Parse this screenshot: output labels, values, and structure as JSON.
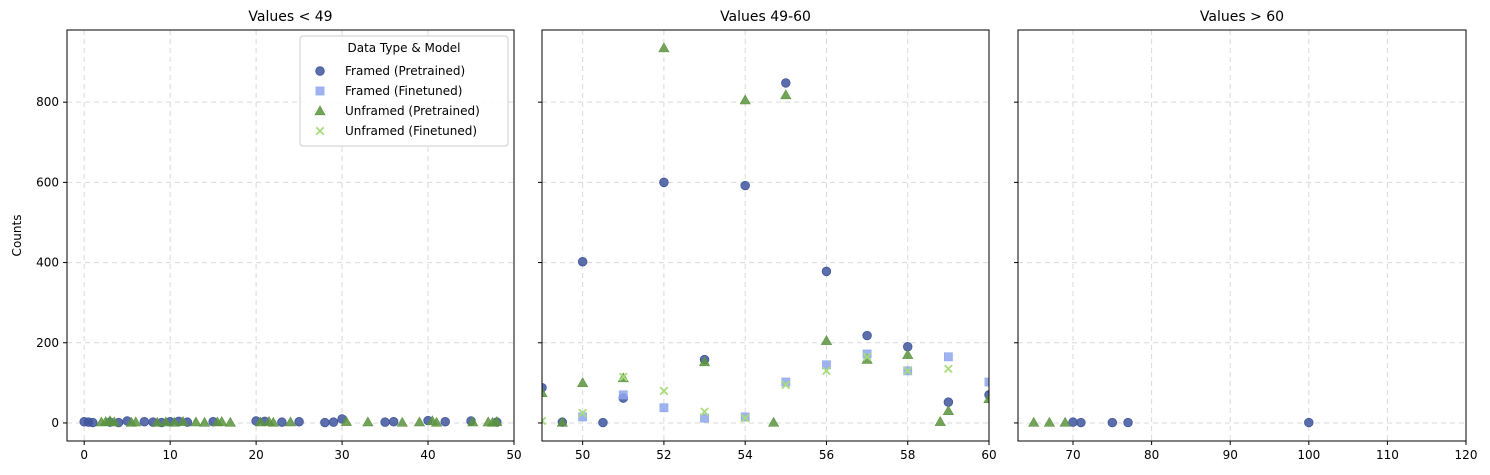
{
  "chart_data": {
    "type": "scatter",
    "ylabel": "Counts",
    "ylim": [
      -45,
      980
    ],
    "y_ticks": [
      0,
      200,
      400,
      600,
      800
    ],
    "grid": true,
    "legend": {
      "title": "Data Type & Model",
      "placement": "top-right of first panel",
      "entries": [
        {
          "label": "Framed (Pretrained)",
          "marker": "circle",
          "color": "#3f559c"
        },
        {
          "label": "Framed (Finetuned)",
          "marker": "square",
          "color": "#8ea6ec"
        },
        {
          "label": "Unframed (Pretrained)",
          "marker": "triangle",
          "color": "#5c9440"
        },
        {
          "label": "Unframed (Finetuned)",
          "marker": "x",
          "color": "#a8dc7a"
        }
      ]
    },
    "panels": [
      {
        "title": "Values < 49",
        "xlim": [
          -2,
          50
        ],
        "x_ticks": [
          0,
          10,
          20,
          30,
          40,
          50
        ],
        "series": [
          {
            "name": "Framed (Pretrained)",
            "points": [
              [
                0,
                3
              ],
              [
                0.5,
                2
              ],
              [
                1,
                1
              ],
              [
                3,
                2
              ],
              [
                4,
                1
              ],
              [
                5,
                5
              ],
              [
                7,
                3
              ],
              [
                8,
                2
              ],
              [
                9,
                1
              ],
              [
                10,
                3
              ],
              [
                11,
                4
              ],
              [
                12,
                2
              ],
              [
                15,
                3
              ],
              [
                20,
                5
              ],
              [
                21,
                4
              ],
              [
                23,
                2
              ],
              [
                25,
                3
              ],
              [
                28,
                1
              ],
              [
                29,
                2
              ],
              [
                30,
                10
              ],
              [
                35,
                2
              ],
              [
                36,
                3
              ],
              [
                40,
                6
              ],
              [
                42,
                3
              ],
              [
                45,
                5
              ],
              [
                48,
                2
              ]
            ]
          },
          {
            "name": "Framed (Finetuned)",
            "points": []
          },
          {
            "name": "Unframed (Pretrained)",
            "points": [
              [
                2,
                2
              ],
              [
                2.5,
                3
              ],
              [
                3,
                5
              ],
              [
                3.5,
                2
              ],
              [
                5.5,
                1
              ],
              [
                6,
                2
              ],
              [
                8.5,
                1
              ],
              [
                9.5,
                2
              ],
              [
                10.5,
                1
              ],
              [
                11.5,
                3
              ],
              [
                13,
                2
              ],
              [
                14,
                1
              ],
              [
                15.5,
                2
              ],
              [
                16,
                3
              ],
              [
                17,
                1
              ],
              [
                20.5,
                2
              ],
              [
                21.5,
                3
              ],
              [
                22,
                1
              ],
              [
                24,
                2
              ],
              [
                30.5,
                3
              ],
              [
                33,
                2
              ],
              [
                37,
                1
              ],
              [
                39,
                2
              ],
              [
                40.5,
                5
              ],
              [
                41,
                1
              ],
              [
                45.2,
                2
              ],
              [
                47,
                2
              ],
              [
                47.5,
                1
              ],
              [
                48,
                3
              ]
            ]
          },
          {
            "name": "Unframed (Finetuned)",
            "points": []
          }
        ]
      },
      {
        "title": "Values 49-60",
        "xlim": [
          49,
          60
        ],
        "x_ticks": [
          50,
          52,
          54,
          56,
          58,
          60
        ],
        "series": [
          {
            "name": "Framed (Pretrained)",
            "points": [
              [
                49,
                88
              ],
              [
                49.5,
                2
              ],
              [
                50,
                402
              ],
              [
                50.5,
                1
              ],
              [
                51,
                62
              ],
              [
                52,
                600
              ],
              [
                53,
                158
              ],
              [
                54,
                592
              ],
              [
                55,
                848
              ],
              [
                56,
                378
              ],
              [
                57,
                218
              ],
              [
                58,
                190
              ],
              [
                59,
                52
              ],
              [
                60,
                70
              ]
            ]
          },
          {
            "name": "Framed (Finetuned)",
            "points": [
              [
                50,
                15
              ],
              [
                51,
                70
              ],
              [
                52,
                38
              ],
              [
                53,
                12
              ],
              [
                54,
                15
              ],
              [
                55,
                102
              ],
              [
                56,
                145
              ],
              [
                57,
                172
              ],
              [
                58,
                130
              ],
              [
                59,
                165
              ],
              [
                60,
                102
              ]
            ]
          },
          {
            "name": "Unframed (Pretrained)",
            "points": [
              [
                49,
                75
              ],
              [
                49.5,
                1
              ],
              [
                50,
                100
              ],
              [
                51,
                112
              ],
              [
                52,
                935
              ],
              [
                53,
                152
              ],
              [
                54,
                805
              ],
              [
                54.7,
                1
              ],
              [
                55,
                818
              ],
              [
                56,
                205
              ],
              [
                57,
                158
              ],
              [
                58,
                170
              ],
              [
                58.8,
                3
              ],
              [
                59,
                30
              ],
              [
                60,
                60
              ]
            ]
          },
          {
            "name": "Unframed (Finetuned)",
            "points": [
              [
                49,
                5
              ],
              [
                50,
                25
              ],
              [
                51,
                115
              ],
              [
                52,
                80
              ],
              [
                53,
                28
              ],
              [
                54,
                12
              ],
              [
                55,
                95
              ],
              [
                56,
                130
              ],
              [
                57,
                165
              ],
              [
                58,
                130
              ],
              [
                59,
                135
              ]
            ]
          }
        ]
      },
      {
        "title": "Values > 60",
        "xlim": [
          63,
          120
        ],
        "x_ticks": [
          70,
          80,
          90,
          100,
          110,
          120
        ],
        "series": [
          {
            "name": "Framed (Pretrained)",
            "points": [
              [
                70,
                2
              ],
              [
                71,
                1
              ],
              [
                75,
                1
              ],
              [
                77,
                1
              ],
              [
                100,
                1
              ]
            ]
          },
          {
            "name": "Framed (Finetuned)",
            "points": []
          },
          {
            "name": "Unframed (Pretrained)",
            "points": [
              [
                65,
                1
              ],
              [
                67,
                1
              ],
              [
                69,
                1
              ]
            ]
          },
          {
            "name": "Unframed (Finetuned)",
            "points": []
          }
        ]
      }
    ]
  }
}
